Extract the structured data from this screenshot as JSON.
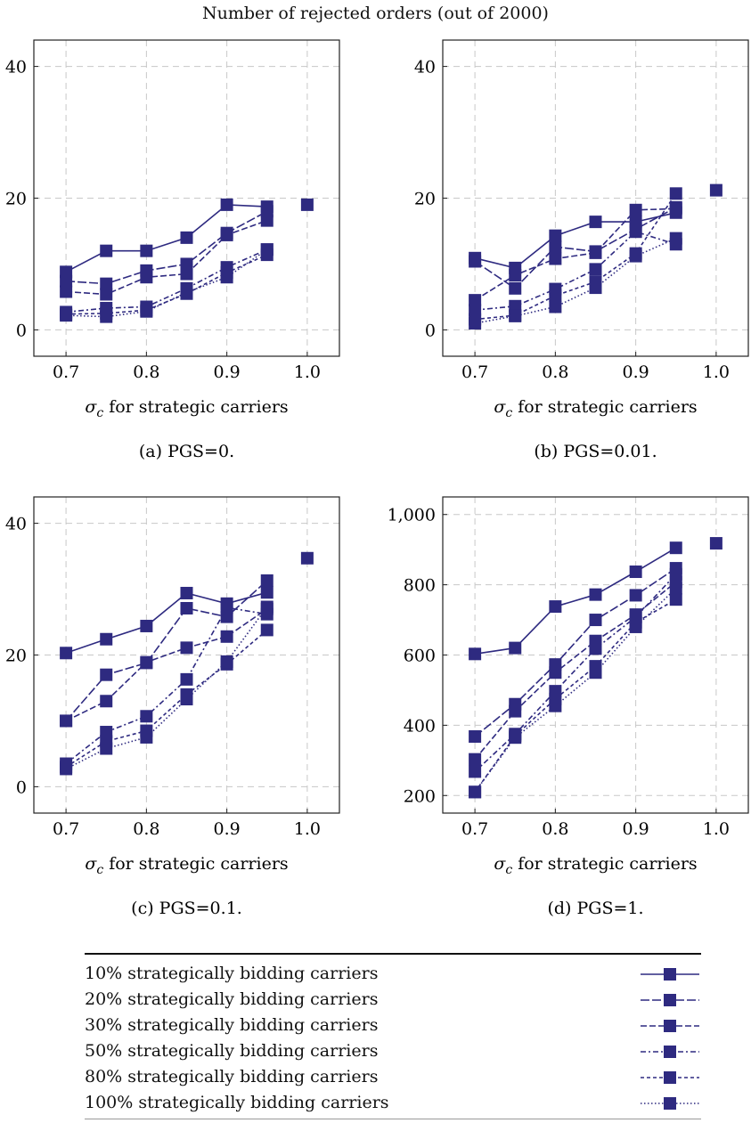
{
  "title": "Number of rejected orders (out of 2000)",
  "color": "#2e2a80",
  "chart_data": [
    {
      "type": "line",
      "caption": "(a) PGS=0.",
      "xlabel": "σc for strategic carriers",
      "xlim": [
        0.66,
        1.04
      ],
      "ylim": [
        -4,
        44
      ],
      "xticks": [
        0.7,
        0.8,
        0.9,
        1.0
      ],
      "xticklabels": [
        "0.7",
        "0.8",
        "0.9",
        "1.0"
      ],
      "yticks": [
        0,
        20,
        40
      ],
      "yticklabels": [
        "0",
        "20",
        "40"
      ],
      "x": [
        0.7,
        0.75,
        0.8,
        0.85,
        0.9,
        0.95
      ],
      "series": [
        {
          "values": [
            8.8,
            12.0,
            12.0,
            14.0,
            19.0,
            18.7
          ]
        },
        {
          "values": [
            7.4,
            7.0,
            9.0,
            10.0,
            14.7,
            18.0
          ]
        },
        {
          "values": [
            5.8,
            5.4,
            8.0,
            8.5,
            14.4,
            16.6
          ]
        },
        {
          "values": [
            2.7,
            3.3,
            3.5,
            6.3,
            9.5,
            12.2
          ]
        },
        {
          "values": [
            2.4,
            2.5,
            3.0,
            5.5,
            8.7,
            11.4
          ]
        },
        {
          "values": [
            2.2,
            2.0,
            2.8,
            5.7,
            8.0,
            12.2
          ]
        }
      ],
      "extra_point": {
        "x": 1.0,
        "y": 19.0
      }
    },
    {
      "type": "line",
      "caption": "(b) PGS=0.01.",
      "xlabel": "σc for strategic carriers",
      "xlim": [
        0.66,
        1.04
      ],
      "ylim": [
        -4,
        44
      ],
      "xticks": [
        0.7,
        0.8,
        0.9,
        1.0
      ],
      "xticklabels": [
        "0.7",
        "0.8",
        "0.9",
        "1.0"
      ],
      "yticks": [
        0,
        20,
        40
      ],
      "yticklabels": [
        "0",
        "20",
        "40"
      ],
      "x": [
        0.7,
        0.75,
        0.8,
        0.85,
        0.9,
        0.95
      ],
      "series": [
        {
          "values": [
            10.9,
            9.4,
            14.3,
            16.4,
            16.4,
            17.8
          ]
        },
        {
          "values": [
            10.4,
            6.3,
            12.6,
            11.9,
            15.3,
            18.6
          ]
        },
        {
          "values": [
            4.5,
            8.3,
            10.8,
            11.7,
            18.2,
            18.4
          ]
        },
        {
          "values": [
            3.0,
            3.6,
            6.2,
            9.2,
            14.9,
            13.0
          ]
        },
        {
          "values": [
            1.6,
            2.2,
            5.2,
            7.3,
            11.6,
            20.7
          ]
        },
        {
          "values": [
            1.0,
            2.1,
            3.5,
            6.4,
            11.2,
            13.9
          ]
        }
      ],
      "extra_point": {
        "x": 1.0,
        "y": 21.2
      }
    },
    {
      "type": "line",
      "caption": "(c) PGS=0.1.",
      "xlabel": "σc for strategic carriers",
      "xlim": [
        0.66,
        1.04
      ],
      "ylim": [
        -4,
        44
      ],
      "xticks": [
        0.7,
        0.8,
        0.9,
        1.0
      ],
      "xticklabels": [
        "0.7",
        "0.8",
        "0.9",
        "1.0"
      ],
      "yticks": [
        0,
        20,
        40
      ],
      "yticklabels": [
        "0",
        "20",
        "40"
      ],
      "x": [
        0.7,
        0.75,
        0.8,
        0.85,
        0.9,
        0.95
      ],
      "series": [
        {
          "values": [
            20.3,
            22.4,
            24.4,
            29.4,
            27.8,
            29.5
          ]
        },
        {
          "values": [
            10.0,
            17.0,
            18.8,
            27.1,
            25.8,
            31.3
          ]
        },
        {
          "values": [
            10.0,
            13.0,
            18.9,
            21.1,
            22.8,
            27.0
          ]
        },
        {
          "values": [
            3.5,
            8.3,
            10.7,
            16.3,
            27.2,
            26.2
          ]
        },
        {
          "values": [
            3.0,
            6.9,
            8.5,
            14.0,
            18.6,
            23.8
          ]
        },
        {
          "values": [
            2.7,
            5.8,
            7.5,
            13.3,
            19.0,
            27.3
          ]
        }
      ],
      "extra_point": {
        "x": 1.0,
        "y": 34.7
      }
    },
    {
      "type": "line",
      "caption": "(d) PGS=1.",
      "xlabel": "σc for strategic carriers",
      "xlim": [
        0.66,
        1.04
      ],
      "ylim": [
        150,
        1050
      ],
      "xticks": [
        0.7,
        0.8,
        0.9,
        1.0
      ],
      "xticklabels": [
        "0.7",
        "0.8",
        "0.9",
        "1.0"
      ],
      "yticks": [
        200,
        400,
        600,
        800,
        1000
      ],
      "yticklabels": [
        "200",
        "400",
        "600",
        "800",
        "1,000"
      ],
      "x": [
        0.7,
        0.75,
        0.8,
        0.85,
        0.9,
        0.95
      ],
      "series": [
        {
          "values": [
            603,
            620,
            738,
            772,
            837,
            905
          ]
        },
        {
          "values": [
            368,
            460,
            573,
            700,
            770,
            847
          ]
        },
        {
          "values": [
            303,
            440,
            550,
            640,
            715,
            808
          ]
        },
        {
          "values": [
            268,
            375,
            497,
            618,
            708,
            830
          ]
        },
        {
          "values": [
            210,
            370,
            475,
            568,
            693,
            758
          ]
        },
        {
          "values": [
            210,
            365,
            455,
            550,
            680,
            790
          ]
        }
      ],
      "extra_point": {
        "x": 1.0,
        "y": 918
      }
    }
  ],
  "legend": {
    "entries": [
      {
        "label": "10% strategically bidding carriers",
        "dash": "none"
      },
      {
        "label": "20% strategically bidding carriers",
        "dash": "10 3"
      },
      {
        "label": "30% strategically bidding carriers",
        "dash": "7 3"
      },
      {
        "label": "50% strategically bidding carriers",
        "dash": "6 3 2 3"
      },
      {
        "label": "80% strategically bidding carriers",
        "dash": "4 3"
      },
      {
        "label": "100% strategically bidding carriers",
        "dash": "1.5 2.5"
      }
    ]
  }
}
